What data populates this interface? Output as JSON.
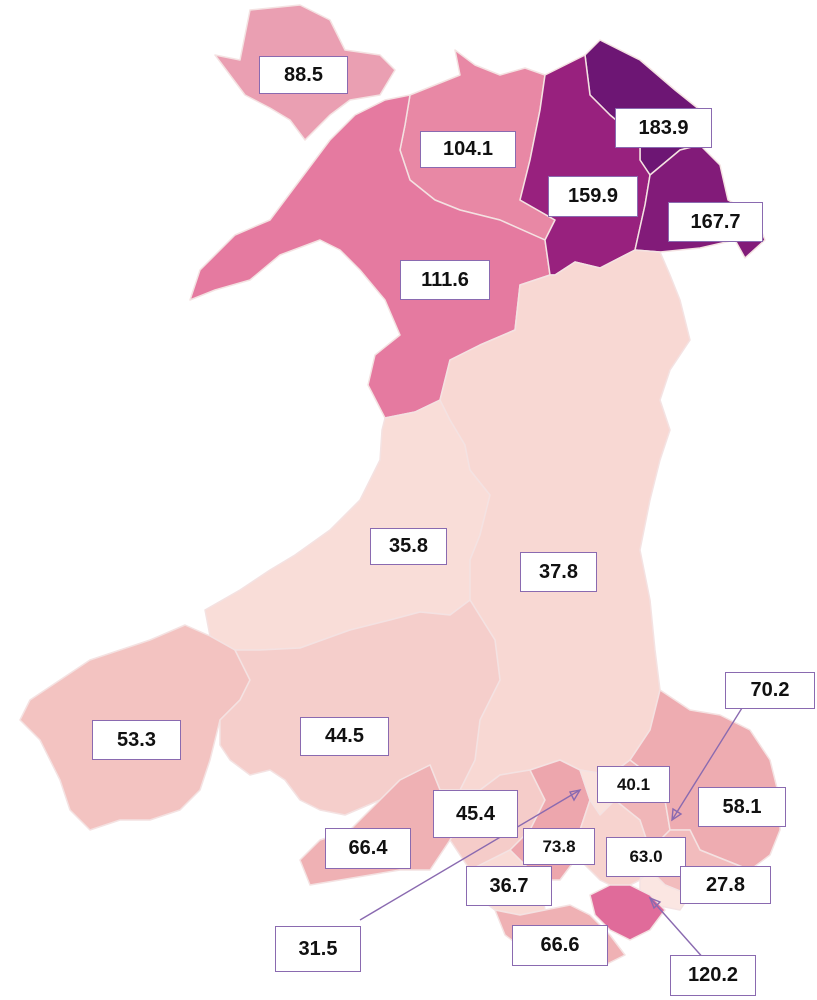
{
  "colors": {
    "border": "#f4e2e2",
    "label_border": "#8a6ab0"
  },
  "regions": [
    {
      "value": "88.5",
      "color": "#ea9fb2"
    },
    {
      "value": "104.1",
      "color": "#e888a5"
    },
    {
      "value": "111.6",
      "color": "#e57aa0"
    },
    {
      "value": "183.9",
      "color": "#6d1674"
    },
    {
      "value": "159.9",
      "color": "#98217e"
    },
    {
      "value": "167.7",
      "color": "#821b79"
    },
    {
      "value": "35.8",
      "color": "#f9ddd8"
    },
    {
      "value": "37.8",
      "color": "#f8d8d3"
    },
    {
      "value": "53.3",
      "color": "#f3c3c1"
    },
    {
      "value": "44.5",
      "color": "#f5cecb"
    },
    {
      "value": "66.4",
      "color": "#efb1b4"
    },
    {
      "value": "45.4",
      "color": "#f5ccc9"
    },
    {
      "value": "73.8",
      "color": "#eda6ad"
    },
    {
      "value": "36.7",
      "color": "#f9dbd6"
    },
    {
      "value": "66.6",
      "color": "#efb1b4"
    },
    {
      "value": "31.5",
      "color": "#fae2dd"
    },
    {
      "value": "40.1",
      "color": "#f7d3cf"
    },
    {
      "value": "63.0",
      "color": "#f0b6b8"
    },
    {
      "value": "70.2",
      "color": "#eeacb1"
    },
    {
      "value": "58.1",
      "color": "#f2bcbd"
    },
    {
      "value": "27.8",
      "color": "#fbe6e2"
    },
    {
      "value": "120.2",
      "color": "#e06b9a"
    }
  ]
}
